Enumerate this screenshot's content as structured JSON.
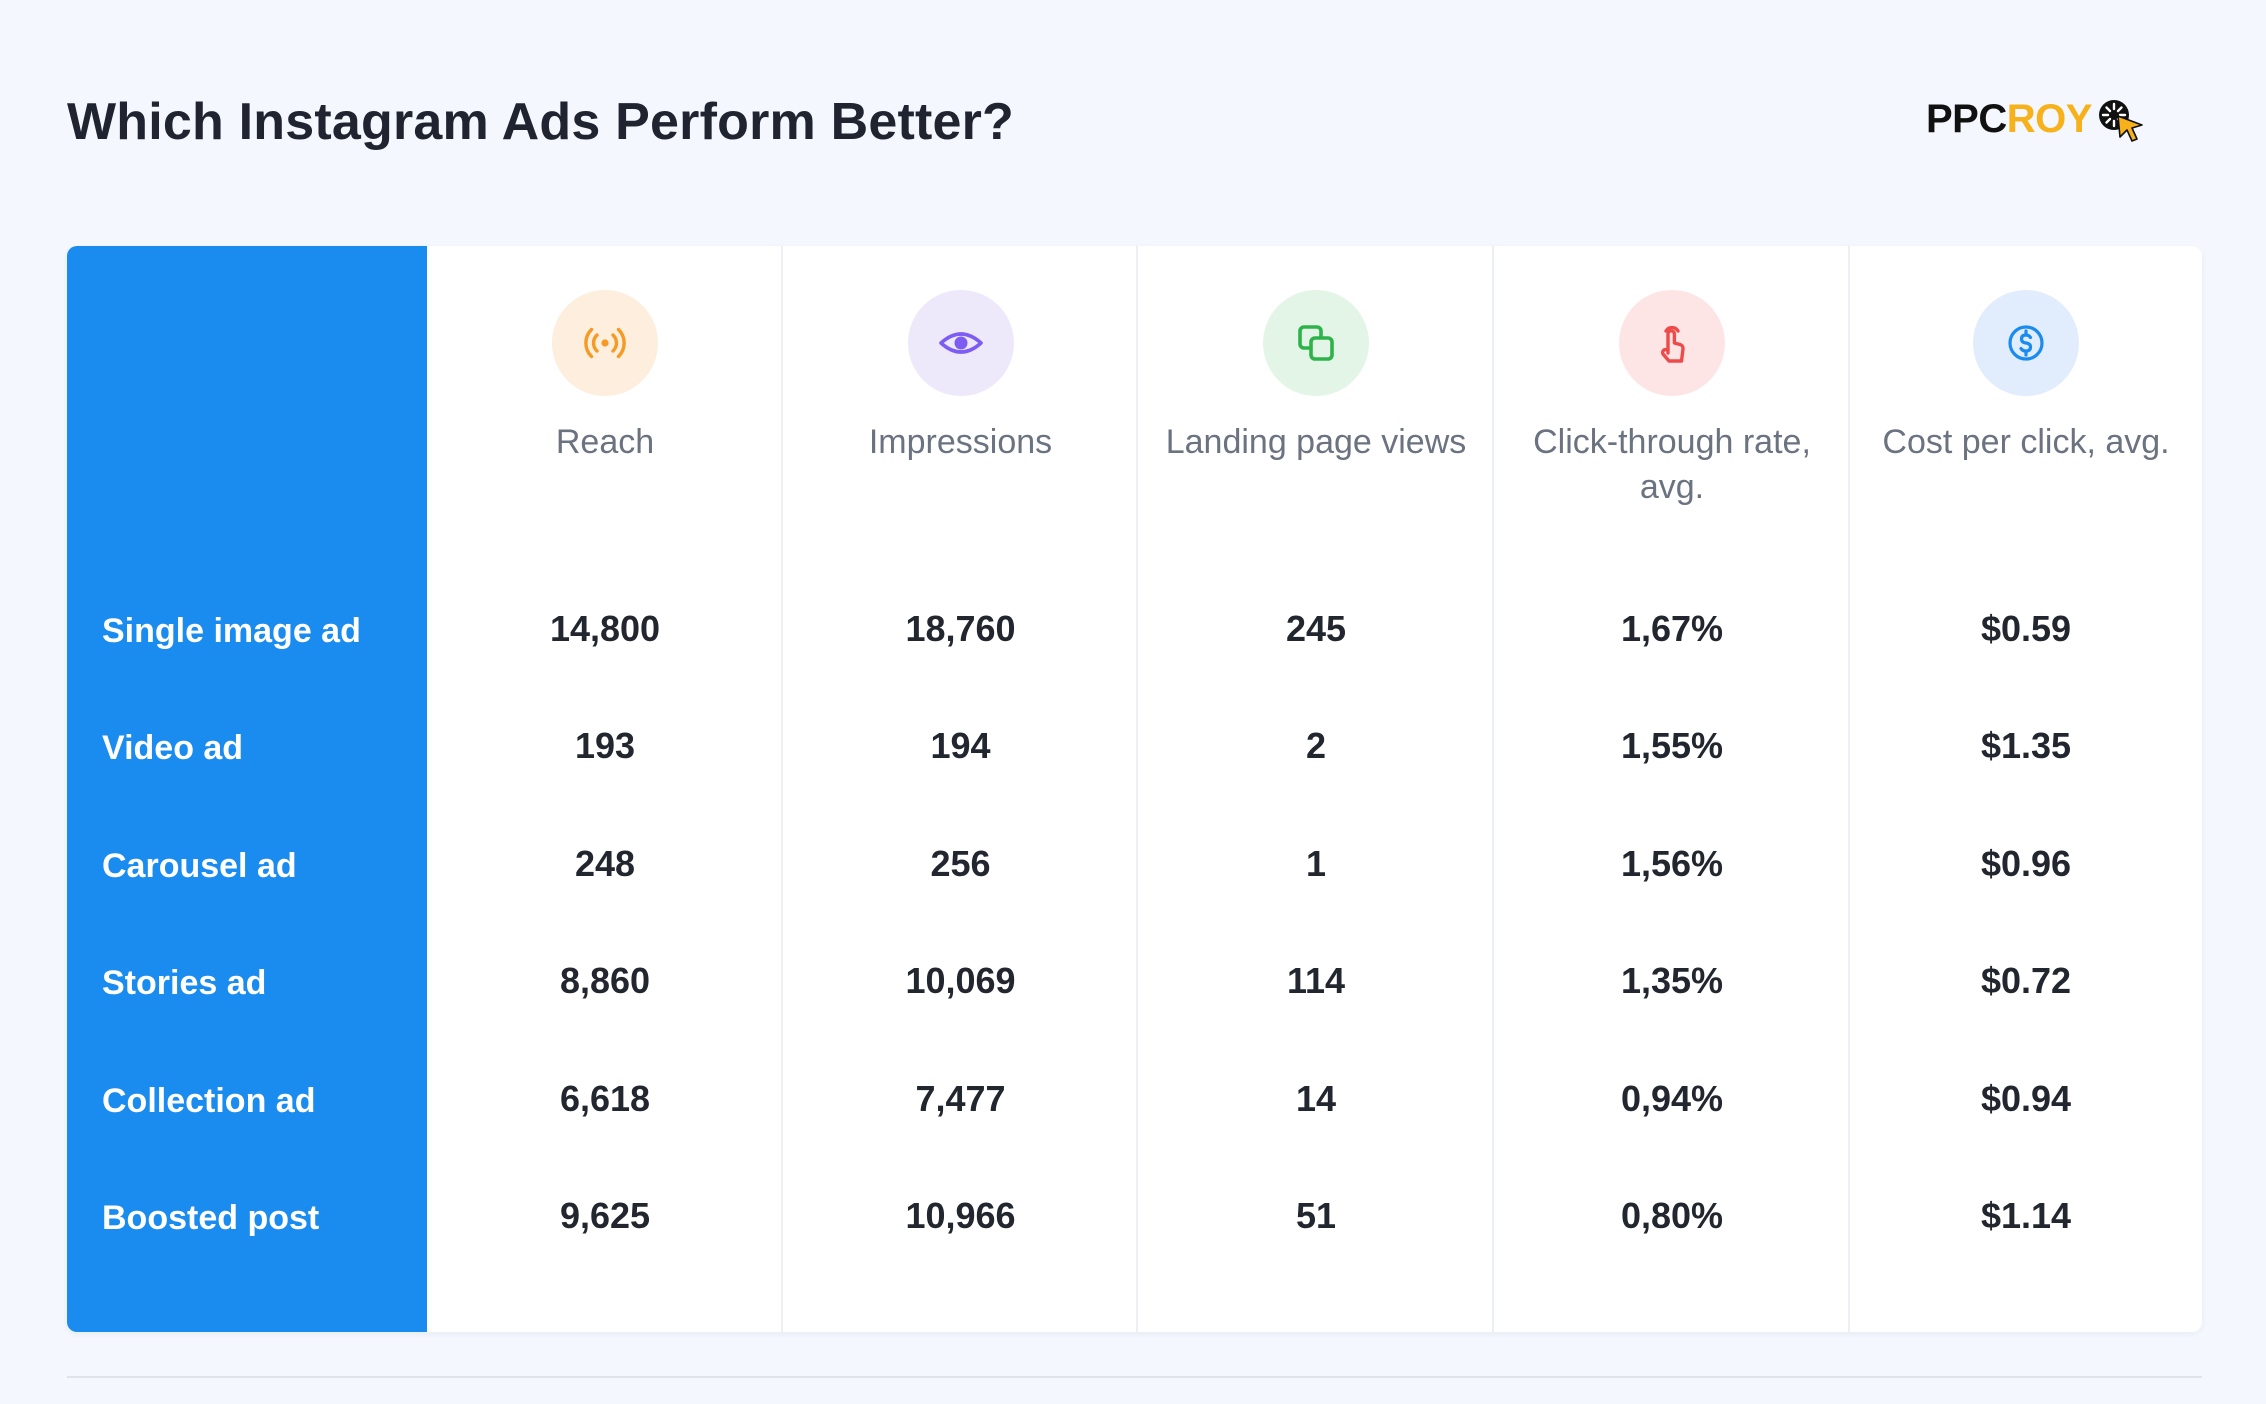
{
  "title": "Which Instagram Ads Perform Better?",
  "logo": {
    "part1": "PPC",
    "part2": "ROY"
  },
  "colors": {
    "row_header_bg": "#1a8cf0",
    "reach": "#f59a23",
    "impressions": "#7c5cf2",
    "landing": "#2db34a",
    "ctr": "#ee4a4a",
    "cpc": "#1a8cf0"
  },
  "chart_data": {
    "type": "table",
    "columns": [
      {
        "key": "reach",
        "label": "Reach",
        "icon": "broadcast-icon"
      },
      {
        "key": "impressions",
        "label": "Impressions",
        "icon": "eye-icon"
      },
      {
        "key": "landing",
        "label": "Landing page views",
        "icon": "pages-icon"
      },
      {
        "key": "ctr",
        "label": "Click-through rate, avg.",
        "icon": "tap-icon"
      },
      {
        "key": "cpc",
        "label": "Cost per click, avg.",
        "icon": "dollar-icon"
      }
    ],
    "rows": [
      {
        "label": "Single image ad",
        "values": [
          "14,800",
          "18,760",
          "245",
          "1,67%",
          "$0.59"
        ]
      },
      {
        "label": "Video ad",
        "values": [
          "193",
          "194",
          "2",
          "1,55%",
          "$1.35"
        ]
      },
      {
        "label": "Carousel ad",
        "values": [
          "248",
          "256",
          "1",
          "1,56%",
          "$0.96"
        ]
      },
      {
        "label": "Stories ad",
        "values": [
          "8,860",
          "10,069",
          "114",
          "1,35%",
          "$0.72"
        ]
      },
      {
        "label": "Collection ad",
        "values": [
          "6,618",
          "7,477",
          "14",
          "0,94%",
          "$0.94"
        ]
      },
      {
        "label": "Boosted post",
        "values": [
          "9,625",
          "10,966",
          "51",
          "0,80%",
          "$1.14"
        ]
      }
    ]
  }
}
